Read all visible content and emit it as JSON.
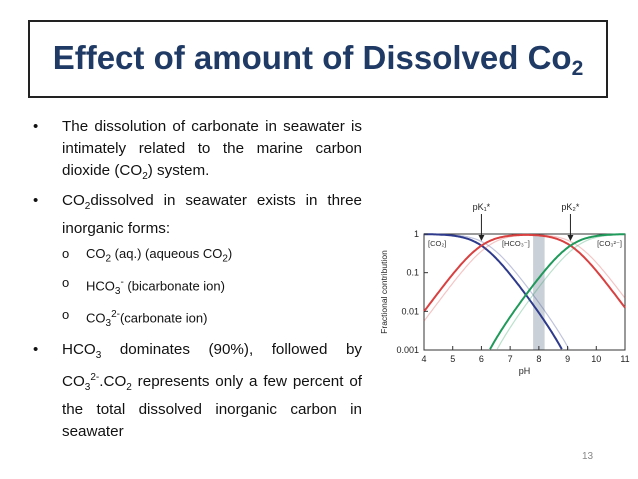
{
  "title": {
    "main": "Effect of amount of Dissolved Co",
    "sub": "2"
  },
  "bullets": {
    "b1": "The dissolution of carbonate in seawater is intimately related to the marine carbon dioxide (CO",
    "b1_sub": "2",
    "b1_end": ") system.",
    "b2_a": "CO",
    "b2_sub": "2",
    "b2_b": "dissolved in seawater exists in three inorganic forms:",
    "sub_items": [
      {
        "a": "CO",
        "sub": "2",
        "b": " (aq.) (aqueous CO",
        "sub2": "2",
        "c": ")"
      },
      {
        "a": "HCO",
        "sup": "-",
        "b": " (bicarbonate ion)"
      },
      {
        "a": "CO",
        "sub": "3",
        "sup": "2-",
        "b": "(carbonate ion)"
      }
    ],
    "b3_a": "HCO",
    "b3_sub": "3",
    "b3_b": " dominates (90%), followed by CO",
    "b3_sub2": "3",
    "b3_sup2": "2-",
    "b3_c": ".CO",
    "b3_sub3": "2",
    "b3_d": " represents only a few percent of the total dissolved inorganic carbon in seawater"
  },
  "page_number": "13",
  "chart_data": {
    "type": "line",
    "xlabel": "pH",
    "ylabel": "Fractional contribution",
    "xlim": [
      4,
      11
    ],
    "ylim": [
      0.001,
      1
    ],
    "yscale": "log",
    "xticks": [
      "4",
      "5",
      "6",
      "7",
      "8",
      "9",
      "10",
      "11"
    ],
    "yticks": [
      "1",
      "0.1",
      "0.01",
      "0.001"
    ],
    "annotations": [
      "pK₁*",
      "pK₂*"
    ],
    "pK1": 6.0,
    "pK2": 9.1,
    "shaded_band": [
      7.8,
      8.2
    ],
    "series": [
      {
        "name": "[CO₂]",
        "color": "#2e3a8c"
      },
      {
        "name": "[HCO₃⁻]",
        "color": "#d94040"
      },
      {
        "name": "[CO₃²⁻]",
        "color": "#1f9a5a"
      }
    ]
  }
}
